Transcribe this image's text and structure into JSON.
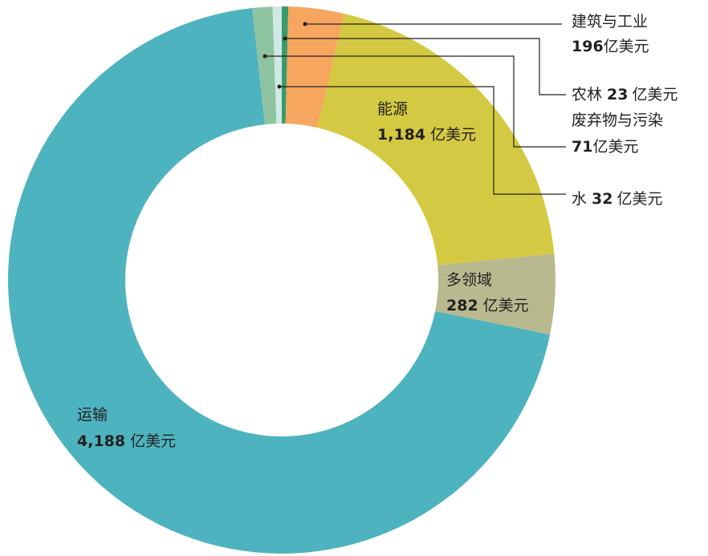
{
  "chart_data": {
    "type": "donut",
    "categories": [
      "农林",
      "建筑与工业",
      "能源",
      "多领域",
      "运输",
      "废弃物与污染",
      "水"
    ],
    "values": [
      23,
      196,
      1184,
      282,
      4188,
      71,
      32
    ],
    "value_labels": [
      "23",
      "196",
      "1,184",
      "282",
      "4,188",
      "71",
      "32"
    ],
    "unit_label": "亿美元",
    "colors": [
      "#3a9a6a",
      "#f6a65e",
      "#d4c942",
      "#b9b98f",
      "#4db3be",
      "#8ec4a1",
      "#cfe9e5"
    ]
  }
}
